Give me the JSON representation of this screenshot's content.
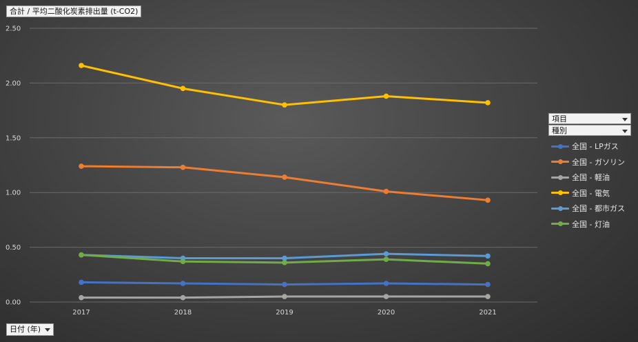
{
  "measure_field": "合計 / 平均二酸化炭素排出量 (t-CO2)",
  "axis_field": "日付 (年)",
  "legend_fields": [
    "項目",
    "種別"
  ],
  "chart_data": {
    "type": "line",
    "title": "",
    "xlabel": "",
    "ylabel": "",
    "x": [
      "2017",
      "2018",
      "2019",
      "2020",
      "2021"
    ],
    "ylim": [
      0,
      2.5
    ],
    "yticks": [
      "0.00",
      "0.50",
      "1.00",
      "1.50",
      "2.00",
      "2.50"
    ],
    "grid": true,
    "legend_position": "right",
    "series": [
      {
        "name": "全国 - LPガス",
        "color": "#4472c4",
        "values": [
          0.18,
          0.17,
          0.16,
          0.17,
          0.16
        ]
      },
      {
        "name": "全国 - ガソリン",
        "color": "#ed7d31",
        "values": [
          1.24,
          1.23,
          1.14,
          1.01,
          0.93
        ]
      },
      {
        "name": "全国 - 軽油",
        "color": "#a5a5a5",
        "values": [
          0.04,
          0.04,
          0.05,
          0.05,
          0.05
        ]
      },
      {
        "name": "全国 - 電気",
        "color": "#ffc000",
        "values": [
          2.16,
          1.95,
          1.8,
          1.88,
          1.82
        ]
      },
      {
        "name": "全国 - 都市ガス",
        "color": "#5b9bd5",
        "values": [
          0.43,
          0.4,
          0.4,
          0.44,
          0.42
        ]
      },
      {
        "name": "全国 - 灯油",
        "color": "#70ad47",
        "values": [
          0.43,
          0.37,
          0.36,
          0.39,
          0.35
        ]
      }
    ]
  }
}
